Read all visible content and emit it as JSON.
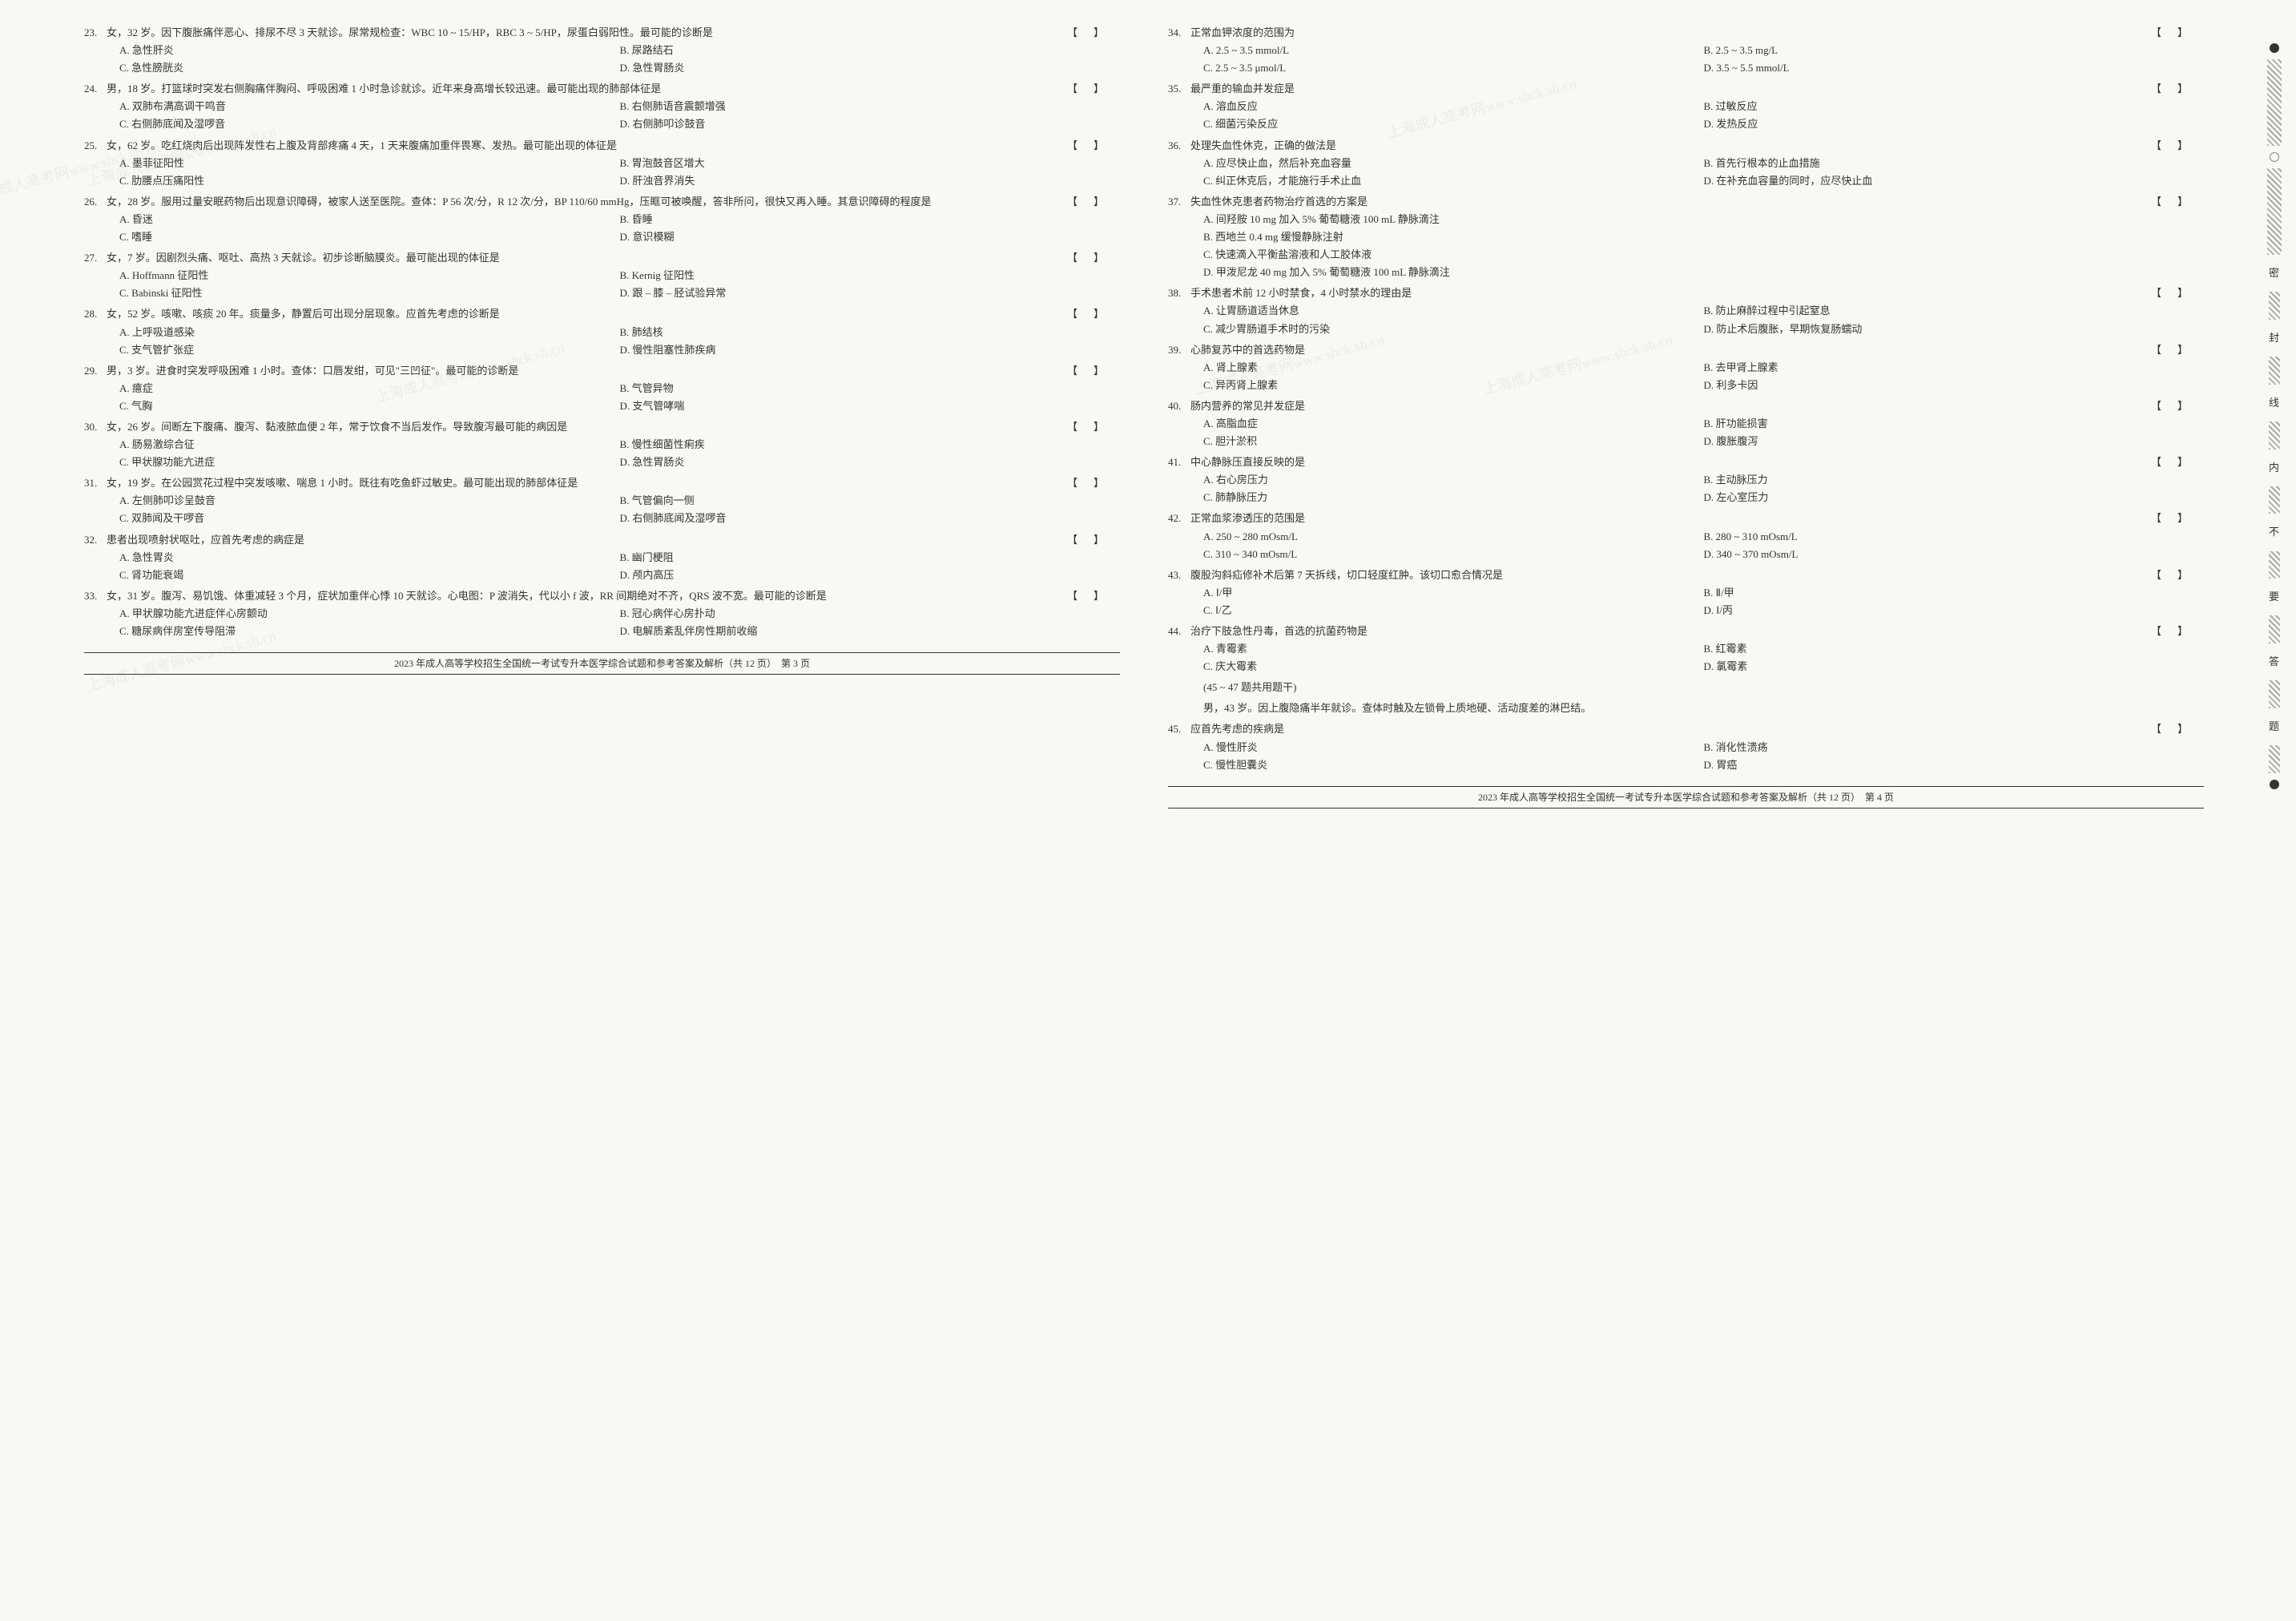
{
  "watermark": "上海成人高考网www.shck.sh.cn",
  "side_chars": [
    "密",
    "封",
    "线",
    "内",
    "不",
    "要",
    "答",
    "题"
  ],
  "left_page": {
    "footer": "2023 年成人高等学校招生全国统一考试专升本医学综合试题和参考答案及解析（共 12 页）　第 3 页",
    "questions": [
      {
        "num": "23.",
        "stem": "女，32 岁。因下腹胀痛伴恶心、排尿不尽 3 天就诊。尿常规检查：WBC 10 ~ 15/HP，RBC 3 ~ 5/HP，尿蛋白弱阳性。最可能的诊断是",
        "bracket": true,
        "cols": 2,
        "opts": [
          "A. 急性肝炎",
          "B. 尿路结石",
          "C. 急性膀胱炎",
          "D. 急性胃肠炎"
        ]
      },
      {
        "num": "24.",
        "stem": "男，18 岁。打篮球时突发右侧胸痛伴胸闷、呼吸困难 1 小时急诊就诊。近年来身高增长较迅速。最可能出现的肺部体征是",
        "bracket": true,
        "cols": 2,
        "opts": [
          "A. 双肺布满高调干鸣音",
          "B. 右侧肺语音震颤增强",
          "C. 右侧肺底闻及湿啰音",
          "D. 右侧肺叩诊鼓音"
        ]
      },
      {
        "num": "25.",
        "stem": "女，62 岁。吃红烧肉后出现阵发性右上腹及背部疼痛 4 天，1 天来腹痛加重伴畏寒、发热。最可能出现的体征是",
        "bracket": true,
        "cols": 2,
        "opts": [
          "A. 墨菲征阳性",
          "B. 胃泡鼓音区增大",
          "C. 肋腰点压痛阳性",
          "D. 肝浊音界消失"
        ]
      },
      {
        "num": "26.",
        "stem": "女，28 岁。服用过量安眠药物后出现意识障碍，被家人送至医院。查体：P 56 次/分，R 12 次/分，BP 110/60 mmHg，压眶可被唤醒，答非所问，很快又再入睡。其意识障碍的程度是",
        "bracket": true,
        "cols": 2,
        "opts": [
          "A. 昏迷",
          "B. 昏睡",
          "C. 嗜睡",
          "D. 意识模糊"
        ]
      },
      {
        "num": "27.",
        "stem": "女，7 岁。因剧烈头痛、呕吐、高热 3 天就诊。初步诊断脑膜炎。最可能出现的体征是",
        "bracket": true,
        "cols": 2,
        "opts": [
          "A. Hoffmann 征阳性",
          "B. Kernig 征阳性",
          "C. Babinski 征阳性",
          "D. 跟 – 膝 – 胫试验异常"
        ]
      },
      {
        "num": "28.",
        "stem": "女，52 岁。咳嗽、咳痰 20 年。痰量多，静置后可出现分层现象。应首先考虑的诊断是",
        "bracket": true,
        "cols": 2,
        "opts": [
          "A. 上呼吸道感染",
          "B. 肺结核",
          "C. 支气管扩张症",
          "D. 慢性阻塞性肺疾病"
        ]
      },
      {
        "num": "29.",
        "stem": "男，3 岁。进食时突发呼吸困难 1 小时。查体：口唇发绀，可见\"三凹征\"。最可能的诊断是",
        "bracket": true,
        "cols": 2,
        "opts": [
          "A. 癔症",
          "B. 气管异物",
          "C. 气胸",
          "D. 支气管哮喘"
        ]
      },
      {
        "num": "30.",
        "stem": "女，26 岁。间断左下腹痛、腹泻、黏液脓血便 2 年，常于饮食不当后发作。导致腹泻最可能的病因是",
        "bracket": true,
        "cols": 2,
        "opts": [
          "A. 肠易激综合征",
          "B. 慢性细菌性痢疾",
          "C. 甲状腺功能亢进症",
          "D. 急性胃肠炎"
        ]
      },
      {
        "num": "31.",
        "stem": "女，19 岁。在公园赏花过程中突发咳嗽、喘息 1 小时。既往有吃鱼虾过敏史。最可能出现的肺部体征是",
        "bracket": true,
        "cols": 2,
        "opts": [
          "A. 左侧肺叩诊呈鼓音",
          "B. 气管偏向一侧",
          "C. 双肺闻及干啰音",
          "D. 右侧肺底闻及湿啰音"
        ]
      },
      {
        "num": "32.",
        "stem": "患者出现喷射状呕吐，应首先考虑的病症是",
        "bracket": true,
        "cols": 2,
        "opts": [
          "A. 急性胃炎",
          "B. 幽门梗阻",
          "C. 肾功能衰竭",
          "D. 颅内高压"
        ]
      },
      {
        "num": "33.",
        "stem": "女，31 岁。腹泻、易饥饿、体重减轻 3 个月，症状加重伴心悸 10 天就诊。心电图：P 波消失，代以小 f 波，RR 间期绝对不齐，QRS 波不宽。最可能的诊断是",
        "bracket": true,
        "cols": 2,
        "opts": [
          "A. 甲状腺功能亢进症伴心房颤动",
          "B. 冠心病伴心房扑动",
          "C. 糖尿病伴房室传导阻滞",
          "D. 电解质紊乱伴房性期前收缩"
        ]
      }
    ]
  },
  "right_page": {
    "footer": "2023 年成人高等学校招生全国统一考试专升本医学综合试题和参考答案及解析（共 12 页）　第 4 页",
    "shared_stem_label": "(45 ~ 47 题共用题干)",
    "shared_stem": "男，43 岁。因上腹隐痛半年就诊。查体时触及左锁骨上质地硬、活动度差的淋巴结。",
    "questions": [
      {
        "num": "34.",
        "stem": "正常血钾浓度的范围为",
        "bracket": true,
        "cols": 2,
        "opts": [
          "A. 2.5 ~ 3.5 mmol/L",
          "B. 2.5 ~ 3.5 mg/L",
          "C. 2.5 ~ 3.5 μmol/L",
          "D. 3.5 ~ 5.5 mmol/L"
        ]
      },
      {
        "num": "35.",
        "stem": "最严重的输血并发症是",
        "bracket": true,
        "cols": 2,
        "opts": [
          "A. 溶血反应",
          "B. 过敏反应",
          "C. 细菌污染反应",
          "D. 发热反应"
        ]
      },
      {
        "num": "36.",
        "stem": "处理失血性休克，正确的做法是",
        "bracket": true,
        "cols": 2,
        "opts": [
          "A. 应尽快止血，然后补充血容量",
          "B. 首先行根本的止血措施",
          "C. 纠正休克后，才能施行手术止血",
          "D. 在补充血容量的同时，应尽快止血"
        ]
      },
      {
        "num": "37.",
        "stem": "失血性休克患者药物治疗首选的方案是",
        "bracket": true,
        "cols": 1,
        "opts": [
          "A. 间羟胺 10 mg 加入 5% 葡萄糖液 100 mL 静脉滴注",
          "B. 西地兰 0.4 mg 缓慢静脉注射",
          "C. 快速滴入平衡盐溶液和人工胶体液",
          "D. 甲泼尼龙 40 mg 加入 5% 葡萄糖液 100 mL 静脉滴注"
        ]
      },
      {
        "num": "38.",
        "stem": "手术患者术前 12 小时禁食，4 小时禁水的理由是",
        "bracket": true,
        "cols": 2,
        "opts": [
          "A. 让胃肠道适当休息",
          "B. 防止麻醉过程中引起窒息",
          "C. 减少胃肠道手术时的污染",
          "D. 防止术后腹胀，早期恢复肠蠕动"
        ]
      },
      {
        "num": "39.",
        "stem": "心肺复苏中的首选药物是",
        "bracket": true,
        "cols": 2,
        "opts": [
          "A. 肾上腺素",
          "B. 去甲肾上腺素",
          "C. 异丙肾上腺素",
          "D. 利多卡因"
        ]
      },
      {
        "num": "40.",
        "stem": "肠内营养的常见并发症是",
        "bracket": true,
        "cols": 2,
        "opts": [
          "A. 高脂血症",
          "B. 肝功能损害",
          "C. 胆汁淤积",
          "D. 腹胀腹泻"
        ]
      },
      {
        "num": "41.",
        "stem": "中心静脉压直接反映的是",
        "bracket": true,
        "cols": 2,
        "opts": [
          "A. 右心房压力",
          "B. 主动脉压力",
          "C. 肺静脉压力",
          "D. 左心室压力"
        ]
      },
      {
        "num": "42.",
        "stem": "正常血浆渗透压的范围是",
        "bracket": true,
        "cols": 2,
        "opts": [
          "A. 250 ~ 280 mOsm/L",
          "B. 280 ~ 310 mOsm/L",
          "C. 310 ~ 340 mOsm/L",
          "D. 340 ~ 370 mOsm/L"
        ]
      },
      {
        "num": "43.",
        "stem": "腹股沟斜疝修补术后第 7 天拆线，切口轻度红肿。该切口愈合情况是",
        "bracket": true,
        "cols": 2,
        "opts": [
          "A. Ⅰ/甲",
          "B. Ⅱ/甲",
          "C. Ⅰ/乙",
          "D. Ⅰ/丙"
        ]
      },
      {
        "num": "44.",
        "stem": "治疗下肢急性丹毒，首选的抗菌药物是",
        "bracket": true,
        "cols": 2,
        "opts": [
          "A. 青霉素",
          "B. 红霉素",
          "C. 庆大霉素",
          "D. 氯霉素"
        ]
      },
      {
        "num": "45.",
        "stem": "应首先考虑的疾病是",
        "bracket": true,
        "cols": 2,
        "opts": [
          "A. 慢性肝炎",
          "B. 消化性溃疡",
          "C. 慢性胆囊炎",
          "D. 胃癌"
        ]
      }
    ]
  }
}
